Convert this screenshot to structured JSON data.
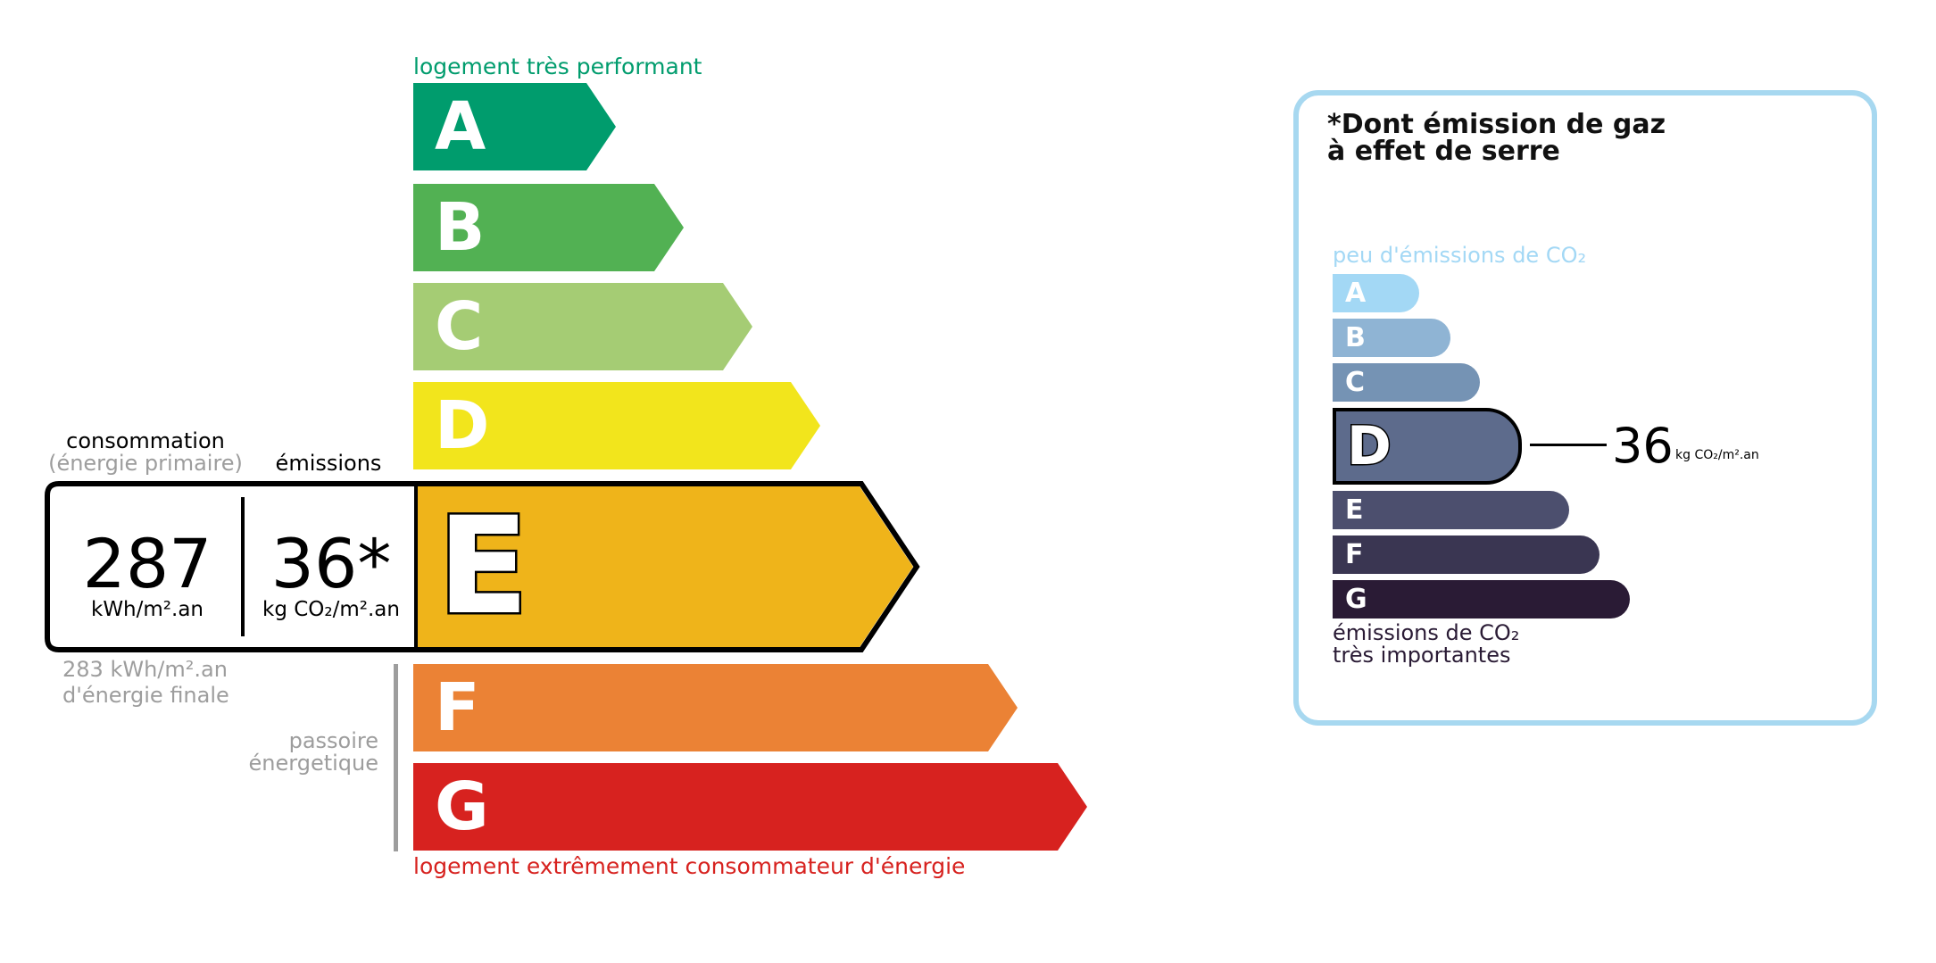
{
  "dpe": {
    "top_label": "logement très performant",
    "bottom_label": "logement extrêmement consommateur d'énergie",
    "classes": [
      {
        "letter": "A",
        "color": "#009c6d"
      },
      {
        "letter": "B",
        "color": "#52b153"
      },
      {
        "letter": "C",
        "color": "#a5cc74"
      },
      {
        "letter": "D",
        "color": "#f2e51c"
      },
      {
        "letter": "E",
        "color": "#efb41a"
      },
      {
        "letter": "F",
        "color": "#eb8235"
      },
      {
        "letter": "G",
        "color": "#d7221f"
      }
    ],
    "current_class": "E",
    "consumption_label": "consommation",
    "consumption_sublabel": "(énergie primaire)",
    "emissions_label": "émissions",
    "consumption_value": "287",
    "consumption_unit": "kWh/m².an",
    "emissions_value": "36*",
    "emissions_unit": "kg CO₂/m².an",
    "final_energy_line1": "283 kWh/m².an",
    "final_energy_line2": "d'énergie finale",
    "passoire_line1": "passoire",
    "passoire_line2": "énergetique"
  },
  "ges": {
    "title_line1": "*Dont émission de gaz",
    "title_line2": "à effet de serre",
    "top_label": "peu d'émissions de CO₂",
    "bottom_label_line1": "émissions de CO₂",
    "bottom_label_line2": "très importantes",
    "classes": [
      {
        "letter": "A",
        "color": "#a3d8f5"
      },
      {
        "letter": "B",
        "color": "#8fb4d4"
      },
      {
        "letter": "C",
        "color": "#7593b4"
      },
      {
        "letter": "D",
        "color": "#5d6b8c"
      },
      {
        "letter": "E",
        "color": "#4c4f6e"
      },
      {
        "letter": "F",
        "color": "#3a3652"
      },
      {
        "letter": "G",
        "color": "#2a1b35"
      }
    ],
    "current_class": "D",
    "value": "36",
    "unit": "kg CO₂/m².an",
    "border_color": "#a7d8f0"
  }
}
